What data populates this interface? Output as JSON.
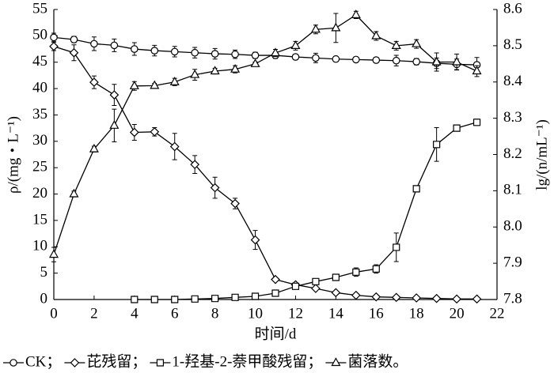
{
  "chart_data": {
    "type": "line",
    "x": [
      0,
      1,
      2,
      3,
      4,
      5,
      6,
      7,
      8,
      9,
      10,
      11,
      12,
      13,
      14,
      15,
      16,
      17,
      18,
      19,
      20,
      21
    ],
    "xlabel": "时间/d",
    "ylabel": "ρ/(mg・L⁻¹)",
    "y2label": "lg/(n/mL⁻¹)",
    "xlim": [
      0,
      22
    ],
    "xticks": [
      0,
      2,
      4,
      6,
      8,
      10,
      12,
      14,
      16,
      18,
      20,
      22
    ],
    "ylim": [
      0,
      55
    ],
    "yticks": [
      0,
      5,
      10,
      15,
      20,
      25,
      30,
      35,
      40,
      45,
      50,
      55
    ],
    "y2lim": [
      7.8,
      8.6
    ],
    "y2ticks": [
      7.8,
      7.9,
      {
        "value": 8,
        "label": "8.0"
      },
      8.1,
      8.2,
      8.3,
      8.4,
      8.5,
      8.6
    ],
    "series": [
      {
        "name": "CK；",
        "color": "#000000",
        "marker": "circle",
        "values": [
          49.7,
          49.3,
          48.5,
          48.2,
          47.5,
          47.2,
          47,
          46.8,
          46.6,
          46.5,
          46.3,
          46.3,
          46,
          45.8,
          45.6,
          45.5,
          45.4,
          45.3,
          45.1,
          44.8,
          44.6,
          44.5
        ],
        "errors": [
          0.8,
          0.6,
          1.3,
          1.2,
          1.2,
          1,
          1,
          1,
          1,
          0.8,
          0.6,
          0.6,
          0.5,
          0.9,
          0.5,
          0.5,
          0.5,
          1,
          0.6,
          1,
          1,
          1.4
        ]
      },
      {
        "name": "芘残留；",
        "color": "#000000",
        "marker": "diamond",
        "values": [
          48,
          46.8,
          41.2,
          38.8,
          31.7,
          31.8,
          29,
          25.6,
          21.2,
          18.2,
          11.3,
          3.8,
          2.8,
          2.1,
          1.3,
          0.8,
          0.5,
          0.4,
          0.3,
          0.2,
          0.1,
          0.1
        ],
        "errors": [
          0.8,
          1.5,
          1.2,
          2,
          1.5,
          0.8,
          2.5,
          1.7,
          2,
          1,
          1.8,
          0.3,
          0.2,
          0.2,
          0.2,
          0.1,
          0.1,
          0.1,
          0.1,
          0.1,
          0.1,
          0.1
        ]
      },
      {
        "name": "1-羟基-2-萘甲酸残留；",
        "color": "#000000",
        "marker": "square",
        "values": [
          null,
          null,
          null,
          null,
          0,
          0,
          0,
          0.1,
          0.2,
          0.4,
          0.6,
          1.2,
          2.5,
          3.4,
          4.2,
          5.2,
          5.8,
          9.9,
          21,
          29.4,
          32.5,
          33.6
        ],
        "errors": [
          null,
          null,
          null,
          null,
          0.1,
          0.1,
          0.1,
          0.1,
          0.1,
          0.1,
          0.1,
          0.2,
          0.3,
          0.3,
          0.4,
          0.8,
          0.8,
          2.7,
          0.4,
          3.2,
          0.5,
          0.6
        ]
      },
      {
        "name": "菌落数。",
        "color": "#000000",
        "marker": "triangle",
        "axis": "y2",
        "values": [
          7.924,
          8.091,
          8.215,
          8.28,
          8.389,
          8.39,
          8.4,
          8.42,
          8.43,
          8.435,
          8.45,
          8.48,
          8.5,
          8.545,
          8.549,
          8.585,
          8.527,
          8.5,
          8.505,
          8.455,
          8.455,
          8.43
        ],
        "errors": [
          0.02,
          0.008,
          0.008,
          0.045,
          0.012,
          0.006,
          0.01,
          0.015,
          0.008,
          0.01,
          0.005,
          0.01,
          0.012,
          0.012,
          0.04,
          0.01,
          0.012,
          0.012,
          0.012,
          0.025,
          0.022,
          0.015
        ]
      }
    ]
  }
}
